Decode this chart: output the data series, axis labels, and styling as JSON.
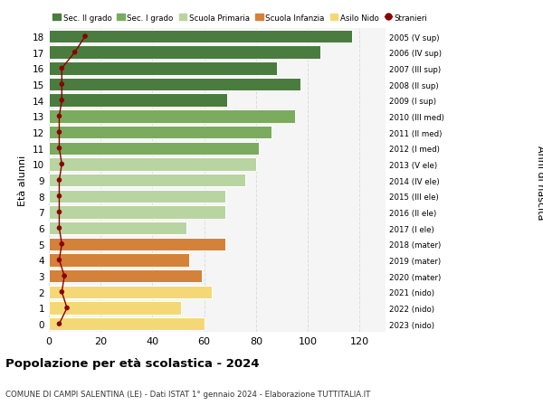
{
  "ages": [
    18,
    17,
    16,
    15,
    14,
    13,
    12,
    11,
    10,
    9,
    8,
    7,
    6,
    5,
    4,
    3,
    2,
    1,
    0
  ],
  "bar_values": [
    117,
    105,
    88,
    97,
    69,
    95,
    86,
    81,
    80,
    76,
    68,
    68,
    53,
    68,
    54,
    59,
    63,
    51,
    60
  ],
  "stranieri_values": [
    14,
    10,
    5,
    5,
    5,
    4,
    4,
    4,
    5,
    4,
    4,
    4,
    4,
    5,
    4,
    6,
    5,
    7,
    4
  ],
  "right_labels": [
    "2005 (V sup)",
    "2006 (IV sup)",
    "2007 (III sup)",
    "2008 (II sup)",
    "2009 (I sup)",
    "2010 (III med)",
    "2011 (II med)",
    "2012 (I med)",
    "2013 (V ele)",
    "2014 (IV ele)",
    "2015 (III ele)",
    "2016 (II ele)",
    "2017 (I ele)",
    "2018 (mater)",
    "2019 (mater)",
    "2020 (mater)",
    "2021 (nido)",
    "2022 (nido)",
    "2023 (nido)"
  ],
  "bar_colors": [
    "#4a7c3f",
    "#4a7c3f",
    "#4a7c3f",
    "#4a7c3f",
    "#4a7c3f",
    "#7aab5e",
    "#7aab5e",
    "#7aab5e",
    "#b8d4a0",
    "#b8d4a0",
    "#b8d4a0",
    "#b8d4a0",
    "#b8d4a0",
    "#d4813a",
    "#d4813a",
    "#d4813a",
    "#f5d876",
    "#f5d876",
    "#f5d876"
  ],
  "legend_labels": [
    "Sec. II grado",
    "Sec. I grado",
    "Scuola Primaria",
    "Scuola Infanzia",
    "Asilo Nido",
    "Stranieri"
  ],
  "legend_colors": [
    "#4a7c3f",
    "#7aab5e",
    "#b8d4a0",
    "#d4813a",
    "#f5d876",
    "#8b0000"
  ],
  "stranieri_color": "#8b0000",
  "title": "Popolazione per età scolastica - 2024",
  "subtitle": "COMUNE DI CAMPI SALENTINA (LE) - Dati ISTAT 1° gennaio 2024 - Elaborazione TUTTITALIA.IT",
  "ylabel_left": "Età alunni",
  "ylabel_right": "Anni di nascita",
  "xlim": [
    0,
    130
  ],
  "xticks": [
    0,
    20,
    40,
    60,
    80,
    100,
    120
  ],
  "grid_color": "#dddddd",
  "bg_color": "#f5f5f5"
}
